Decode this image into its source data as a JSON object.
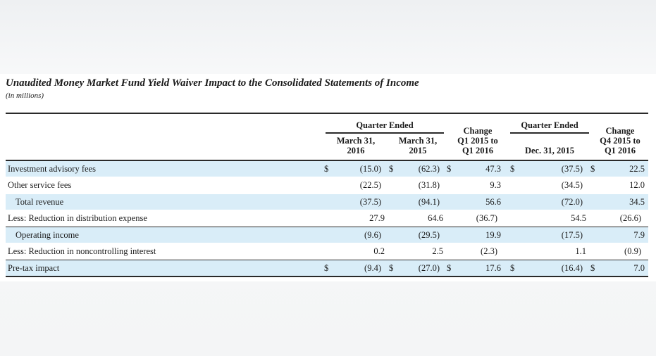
{
  "title": "Unaudited Money Market Fund Yield Waiver Impact to the Consolidated Statements of Income",
  "subtitle": "(in millions)",
  "header": {
    "group1": "Quarter Ended",
    "group2": "Quarter Ended",
    "col1": [
      "March 31,",
      "2016"
    ],
    "col2": [
      "March 31,",
      "2015"
    ],
    "col3": [
      "Change",
      "Q1 2015 to",
      "Q1 2016"
    ],
    "col4": [
      "Dec. 31, 2015"
    ],
    "col5": [
      "Change",
      "Q4 2015 to",
      "Q1 2016"
    ]
  },
  "rows": [
    {
      "label": "Investment advisory fees",
      "dollar": true,
      "values": [
        "(15.0)",
        "(62.3)",
        "47.3",
        "(37.5)",
        "22.5"
      ]
    },
    {
      "label": "Other service fees",
      "dollar": false,
      "values": [
        "(22.5)",
        "(31.8)",
        "9.3",
        "(34.5)",
        "12.0"
      ]
    },
    {
      "label": "Total revenue",
      "dollar": false,
      "values": [
        "(37.5)",
        "(94.1)",
        "56.6",
        "(72.0)",
        "34.5"
      ]
    },
    {
      "label": "Less: Reduction in distribution expense",
      "dollar": false,
      "values": [
        "27.9",
        "64.6",
        "(36.7)",
        "54.5",
        "(26.6)"
      ]
    },
    {
      "label": "Operating income",
      "dollar": false,
      "values": [
        "(9.6)",
        "(29.5)",
        "19.9",
        "(17.5)",
        "7.9"
      ]
    },
    {
      "label": "Less: Reduction in noncontrolling interest",
      "dollar": false,
      "values": [
        "0.2",
        "2.5",
        "(2.3)",
        "1.1",
        "(0.9)"
      ]
    },
    {
      "label": "Pre-tax impact",
      "dollar": true,
      "values": [
        "(9.4)",
        "(27.0)",
        "17.6",
        "(16.4)",
        "7.0"
      ]
    }
  ],
  "currency_symbol": "$"
}
